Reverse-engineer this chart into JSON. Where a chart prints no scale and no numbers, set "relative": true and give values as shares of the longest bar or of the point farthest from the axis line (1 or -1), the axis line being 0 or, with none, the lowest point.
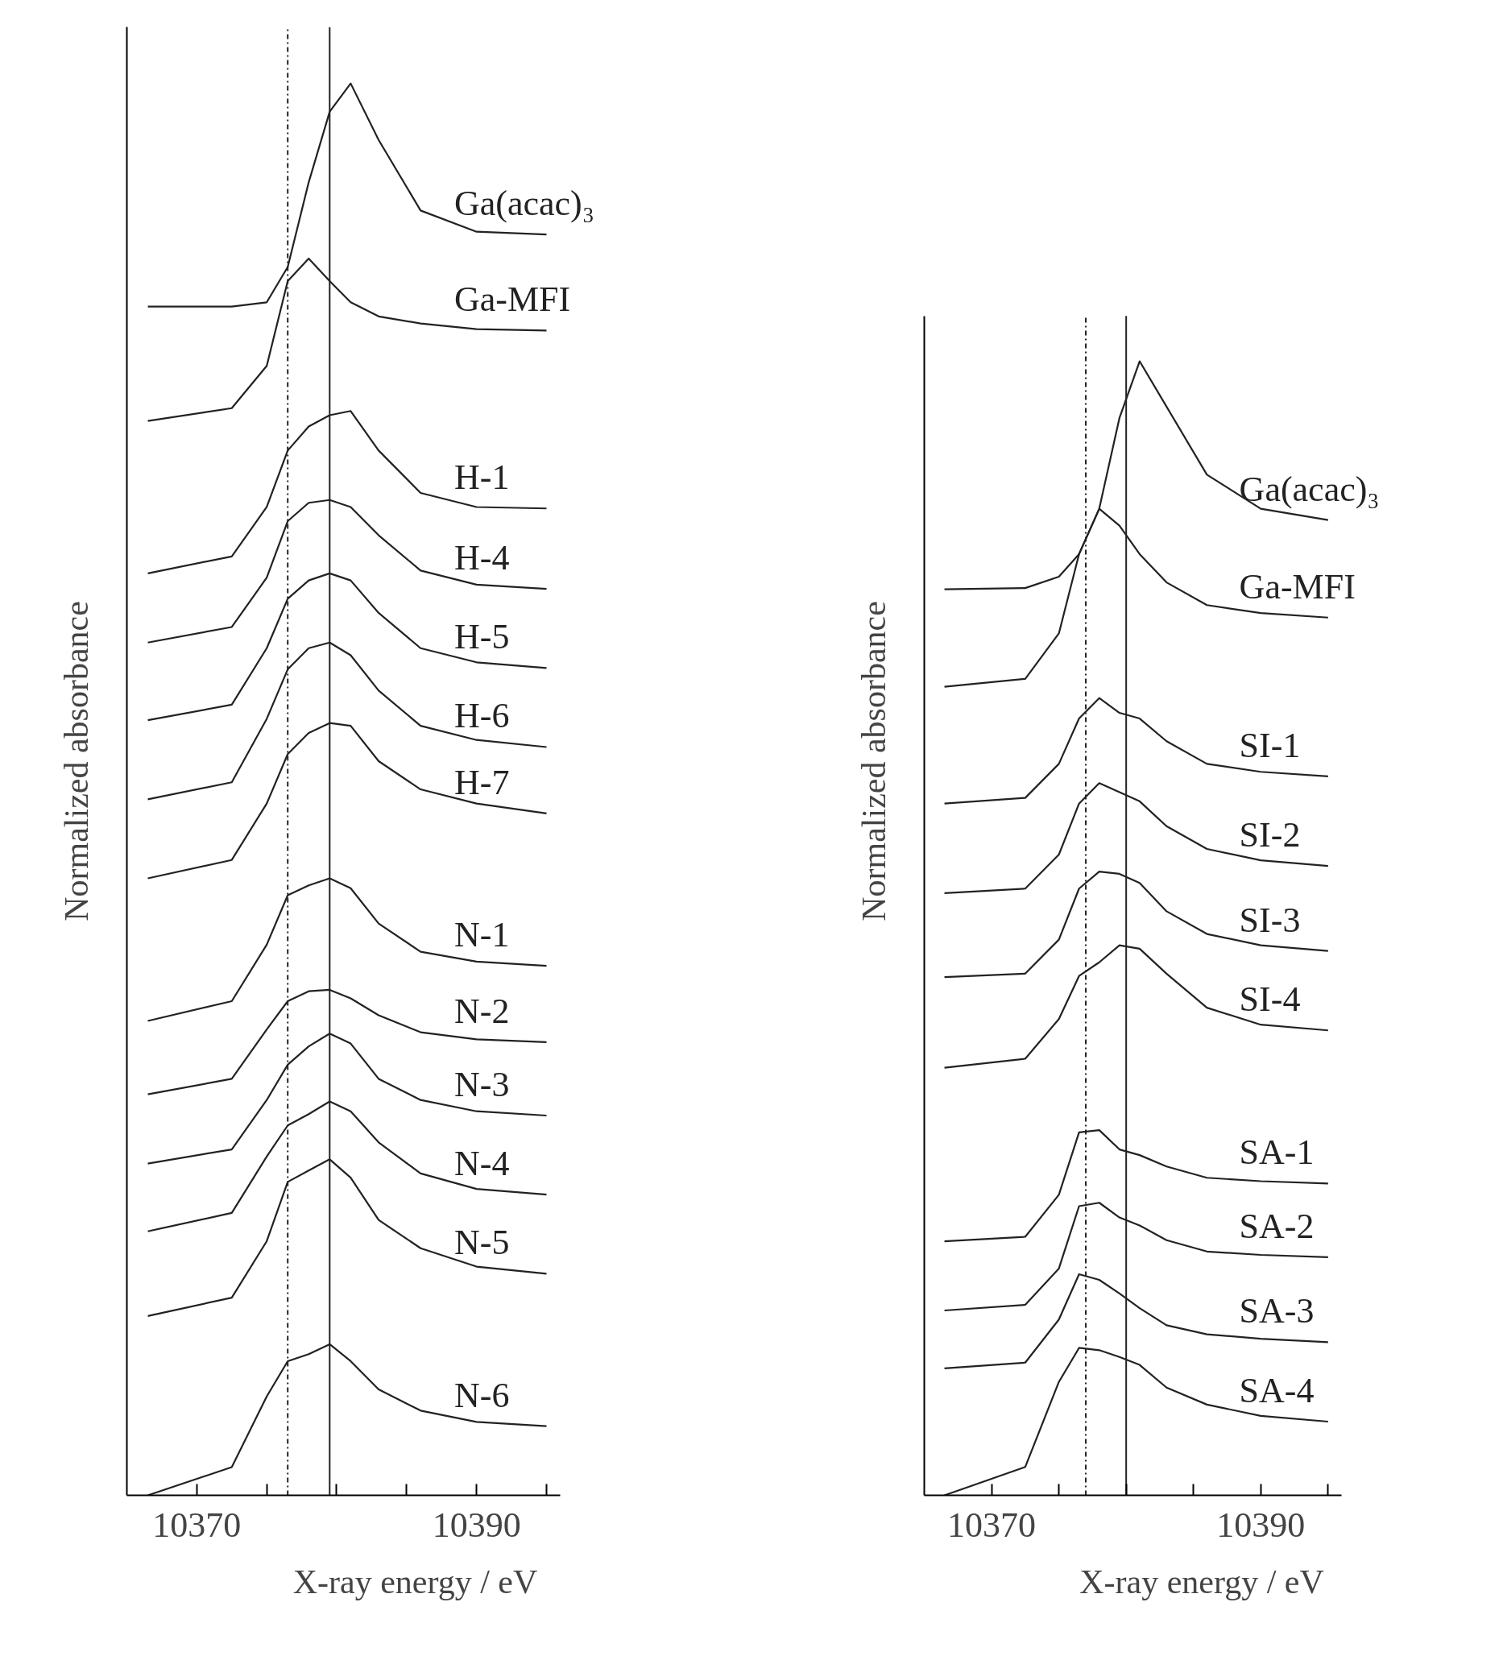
{
  "chart_data": [
    {
      "type": "line",
      "relative": true,
      "xlabel": "X-ray energy / eV",
      "ylabel": "Normalized absorbance",
      "grid": false,
      "legend": false,
      "x": [
        10366.5,
        10372.5,
        10375,
        10376.5,
        10378,
        10379.5,
        10381,
        10383,
        10386,
        10390,
        10395
      ],
      "xlim": [
        10365,
        10396
      ],
      "xticks": [
        10370,
        {
          "value": 10375,
          "label": null
        },
        {
          "value": 10380,
          "label": null
        },
        {
          "value": 10385,
          "label": null
        },
        10390,
        {
          "value": 10395,
          "label": null
        }
      ],
      "ref_lines": [
        {
          "axis": "x",
          "value": 10376.5,
          "label": null,
          "color": "#222222",
          "line_style": "dashdot"
        },
        {
          "axis": "x",
          "value": 10379.5,
          "label": null,
          "color": "#222222",
          "line_style": "solid"
        }
      ],
      "series": [
        {
          "name": "Ga(acac)₃",
          "color": "#222222",
          "values": [
            0.842,
            0.842,
            0.845,
            0.87,
            0.93,
            0.98,
            1.0,
            0.96,
            0.91,
            0.895,
            0.893
          ]
        },
        {
          "name": "Ga-MFI",
          "color": "#222222",
          "values": [
            0.761,
            0.77,
            0.8,
            0.86,
            0.876,
            0.86,
            0.845,
            0.835,
            0.83,
            0.826,
            0.825
          ]
        },
        {
          "name": "H-1",
          "color": "#222222",
          "values": [
            0.653,
            0.665,
            0.7,
            0.74,
            0.757,
            0.765,
            0.768,
            0.74,
            0.71,
            0.7,
            0.699
          ]
        },
        {
          "name": "H-4",
          "color": "#222222",
          "values": [
            0.604,
            0.615,
            0.65,
            0.69,
            0.703,
            0.705,
            0.7,
            0.68,
            0.655,
            0.645,
            0.642
          ]
        },
        {
          "name": "H-5",
          "color": "#222222",
          "values": [
            0.549,
            0.56,
            0.6,
            0.635,
            0.648,
            0.653,
            0.648,
            0.625,
            0.6,
            0.59,
            0.586
          ]
        },
        {
          "name": "H-6",
          "color": "#222222",
          "values": [
            0.493,
            0.505,
            0.55,
            0.585,
            0.6,
            0.604,
            0.595,
            0.57,
            0.545,
            0.535,
            0.53
          ]
        },
        {
          "name": "H-7",
          "color": "#222222",
          "values": [
            0.437,
            0.45,
            0.49,
            0.525,
            0.54,
            0.547,
            0.545,
            0.52,
            0.5,
            0.49,
            0.483
          ]
        },
        {
          "name": "N-1",
          "color": "#222222",
          "values": [
            0.336,
            0.35,
            0.39,
            0.425,
            0.432,
            0.437,
            0.43,
            0.405,
            0.385,
            0.378,
            0.375
          ]
        },
        {
          "name": "N-2",
          "color": "#222222",
          "values": [
            0.284,
            0.295,
            0.33,
            0.35,
            0.357,
            0.358,
            0.352,
            0.34,
            0.328,
            0.323,
            0.321
          ]
        },
        {
          "name": "N-3",
          "color": "#222222",
          "values": [
            0.235,
            0.245,
            0.28,
            0.305,
            0.318,
            0.327,
            0.32,
            0.295,
            0.28,
            0.272,
            0.269
          ]
        },
        {
          "name": "N-4",
          "color": "#222222",
          "values": [
            0.187,
            0.2,
            0.24,
            0.262,
            0.27,
            0.279,
            0.272,
            0.25,
            0.228,
            0.217,
            0.213
          ]
        },
        {
          "name": "N-5",
          "color": "#222222",
          "values": [
            0.127,
            0.14,
            0.18,
            0.222,
            0.23,
            0.238,
            0.225,
            0.195,
            0.175,
            0.162,
            0.157
          ]
        },
        {
          "name": "N-6",
          "color": "#222222",
          "values": [
            0.0,
            0.02,
            0.07,
            0.095,
            0.1,
            0.107,
            0.095,
            0.075,
            0.06,
            0.052,
            0.049
          ]
        }
      ]
    },
    {
      "type": "line",
      "relative": true,
      "xlabel": "X-ray energy / eV",
      "ylabel": "Normalized absorbance",
      "grid": false,
      "legend": false,
      "x": [
        10366.5,
        10372.5,
        10375,
        10376.5,
        10378,
        10379.5,
        10381,
        10383,
        10386,
        10390,
        10395
      ],
      "xlim": [
        10365,
        10396
      ],
      "xticks": [
        10370,
        {
          "value": 10375,
          "label": null
        },
        {
          "value": 10380,
          "label": null
        },
        {
          "value": 10385,
          "label": null
        },
        10390,
        {
          "value": 10395,
          "label": null
        }
      ],
      "ref_lines": [
        {
          "axis": "x",
          "value": 10377,
          "label": null,
          "color": "#222222",
          "line_style": "dashdot"
        },
        {
          "axis": "x",
          "value": 10380,
          "label": null,
          "color": "#222222",
          "line_style": "solid"
        }
      ],
      "series": [
        {
          "name": "Ga(acac)₃",
          "color": "#222222",
          "values": [
            0.799,
            0.8,
            0.81,
            0.83,
            0.87,
            0.95,
            1.0,
            0.96,
            0.9,
            0.87,
            0.86
          ]
        },
        {
          "name": "Ga-MFI",
          "color": "#222222",
          "values": [
            0.713,
            0.72,
            0.76,
            0.83,
            0.87,
            0.855,
            0.83,
            0.805,
            0.785,
            0.778,
            0.774
          ]
        },
        {
          "name": "SI-1",
          "color": "#222222",
          "values": [
            0.61,
            0.615,
            0.645,
            0.685,
            0.703,
            0.69,
            0.685,
            0.665,
            0.645,
            0.638,
            0.634
          ]
        },
        {
          "name": "SI-2",
          "color": "#222222",
          "values": [
            0.531,
            0.535,
            0.565,
            0.61,
            0.628,
            0.62,
            0.612,
            0.59,
            0.57,
            0.56,
            0.555
          ]
        },
        {
          "name": "SI-3",
          "color": "#222222",
          "values": [
            0.457,
            0.46,
            0.49,
            0.535,
            0.55,
            0.548,
            0.54,
            0.515,
            0.495,
            0.485,
            0.48
          ]
        },
        {
          "name": "SI-4",
          "color": "#222222",
          "values": [
            0.377,
            0.385,
            0.42,
            0.458,
            0.47,
            0.485,
            0.482,
            0.46,
            0.43,
            0.415,
            0.41
          ]
        },
        {
          "name": "SA-1",
          "color": "#222222",
          "values": [
            0.224,
            0.228,
            0.265,
            0.32,
            0.322,
            0.305,
            0.3,
            0.29,
            0.28,
            0.277,
            0.275
          ]
        },
        {
          "name": "SA-2",
          "color": "#222222",
          "values": [
            0.163,
            0.168,
            0.2,
            0.255,
            0.258,
            0.245,
            0.238,
            0.225,
            0.215,
            0.212,
            0.21
          ]
        },
        {
          "name": "SA-3",
          "color": "#222222",
          "values": [
            0.112,
            0.117,
            0.155,
            0.195,
            0.19,
            0.178,
            0.165,
            0.15,
            0.142,
            0.138,
            0.135
          ]
        },
        {
          "name": "SA-4",
          "color": "#222222",
          "values": [
            0.0,
            0.025,
            0.1,
            0.13,
            0.128,
            0.122,
            0.115,
            0.095,
            0.08,
            0.07,
            0.065
          ]
        }
      ]
    }
  ]
}
